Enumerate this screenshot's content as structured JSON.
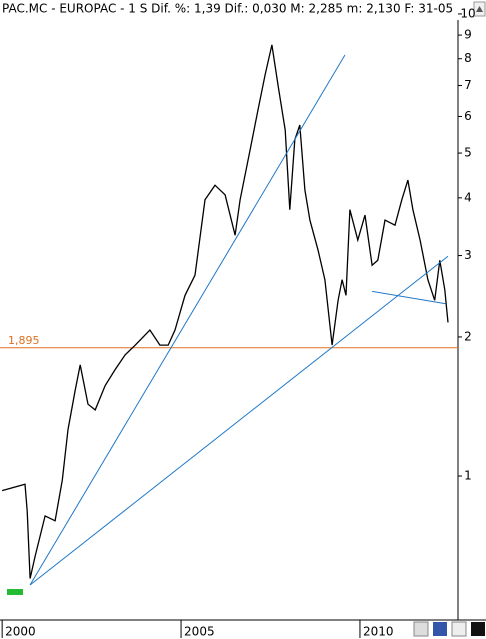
{
  "chart_data": {
    "type": "line",
    "title": "PAC.MC - EUROPAC - 1 S  Dif. %: 1,39  Dif.: 0,030  M: 2,285  m: 2,130  F: 31-05",
    "log_scale": true,
    "xlim": [
      1999.94,
      2012.74
    ],
    "xticks": [
      2000,
      2005,
      2010
    ],
    "ylim": [
      0.488,
      10.72
    ],
    "yticks": [
      1,
      2,
      3,
      4,
      5,
      6,
      7,
      8,
      9,
      10
    ],
    "series": [
      {
        "color": "#000000",
        "x": [
          2000.0,
          2000.64,
          2000.7,
          2000.78,
          2000.92,
          2001.2,
          2001.48,
          2001.68,
          2001.84,
          2002.04,
          2002.18,
          2002.4,
          2002.6,
          2002.88,
          2003.16,
          2003.44,
          2003.72,
          2004.13,
          2004.41,
          2004.64,
          2004.83,
          2005.11,
          2005.39,
          2005.67,
          2005.95,
          2006.23,
          2006.51,
          2006.65,
          2006.93,
          2007.15,
          2007.35,
          2007.54,
          2007.71,
          2007.91,
          2008.04,
          2008.18,
          2008.32,
          2008.46,
          2008.6,
          2008.83,
          2009.02,
          2009.22,
          2009.39,
          2009.5,
          2009.61,
          2009.72,
          2009.94,
          2010.14,
          2010.34,
          2010.5,
          2010.7,
          2010.98,
          2011.17,
          2011.34,
          2011.48,
          2011.68,
          2011.9,
          2012.09,
          2012.23,
          2012.37,
          2012.46
        ],
        "values": [
          0.93,
          0.96,
          0.84,
          0.6,
          0.67,
          0.82,
          0.8,
          0.98,
          1.26,
          1.53,
          1.74,
          1.43,
          1.39,
          1.57,
          1.7,
          1.83,
          1.92,
          2.07,
          1.92,
          1.92,
          2.07,
          2.46,
          2.72,
          3.96,
          4.26,
          4.06,
          3.32,
          3.96,
          5.08,
          6.2,
          7.38,
          8.57,
          7.02,
          5.61,
          3.77,
          5.34,
          5.75,
          4.16,
          3.58,
          3.08,
          2.66,
          1.92,
          2.4,
          2.66,
          2.46,
          3.77,
          3.24,
          3.67,
          2.86,
          2.93,
          3.58,
          3.49,
          3.96,
          4.37,
          3.77,
          3.24,
          2.66,
          2.4,
          2.93,
          2.53,
          2.15
        ]
      }
    ],
    "level": {
      "value": 1.895,
      "label": "1,895",
      "color": "#e07020"
    },
    "trendline_color": "#1f78c8",
    "trendlines": [
      {
        "x": [
          2000.78,
          2009.58
        ],
        "y": [
          0.581,
          8.15
        ]
      },
      {
        "x": [
          2000.78,
          2012.46
        ],
        "y": [
          0.581,
          2.99
        ]
      },
      {
        "x": [
          2010.34,
          2012.4
        ],
        "y": [
          2.51,
          2.36
        ]
      }
    ]
  }
}
